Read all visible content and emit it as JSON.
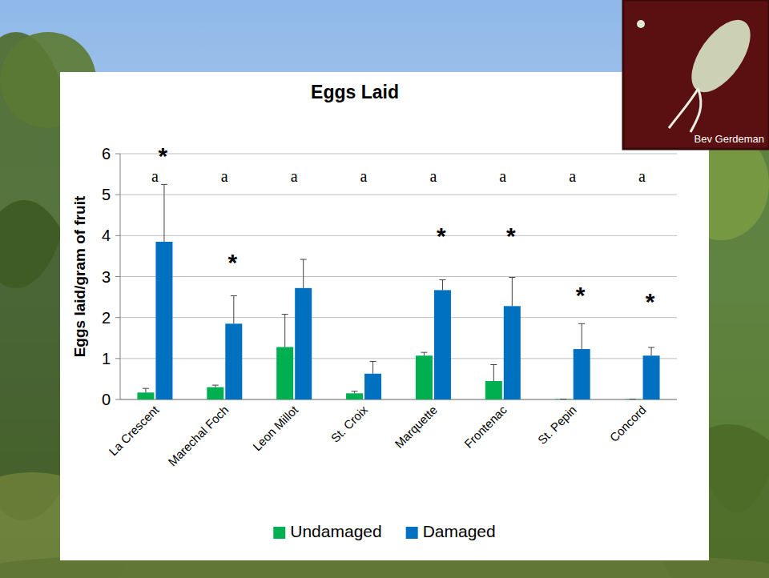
{
  "chart_data": {
    "type": "bar",
    "title": "Eggs Laid",
    "y_label": "Eggs laid/gram of fruit",
    "categories": [
      "La Crescent",
      "Marechal Foch",
      "Leon Millot",
      "St. Croix",
      "Marquette",
      "Frontenac",
      "St. Pepin",
      "Concord"
    ],
    "series": [
      {
        "name": "Undamaged",
        "color": "#00b050",
        "values": [
          0.17,
          0.3,
          1.28,
          0.15,
          1.07,
          0.45,
          0.01,
          0.01
        ],
        "errors": [
          0.1,
          0.05,
          0.8,
          0.05,
          0.08,
          0.4,
          0,
          0
        ]
      },
      {
        "name": "Damaged",
        "color": "#0070c0",
        "values": [
          3.85,
          1.85,
          2.72,
          0.63,
          2.67,
          2.28,
          1.23,
          1.07
        ],
        "errors": [
          1.4,
          0.68,
          0.7,
          0.3,
          0.25,
          0.7,
          0.62,
          0.2
        ]
      }
    ],
    "annotations": [
      {
        "text": "a",
        "category": 0,
        "y": 5.45
      },
      {
        "text": "a",
        "category": 1,
        "y": 5.45
      },
      {
        "text": "a",
        "category": 2,
        "y": 5.45
      },
      {
        "text": "a",
        "category": 3,
        "y": 5.45
      },
      {
        "text": "a",
        "category": 4,
        "y": 5.45
      },
      {
        "text": "a",
        "category": 5,
        "y": 5.45
      },
      {
        "text": "a",
        "category": 6,
        "y": 5.45
      },
      {
        "text": "a",
        "category": 7,
        "y": 5.45
      },
      {
        "text": "*",
        "category": 0,
        "y": 6.05
      },
      {
        "text": "*",
        "category": 1,
        "y": 3.45
      },
      {
        "text": "*",
        "category": 4,
        "y": 4.1
      },
      {
        "text": "*",
        "category": 5,
        "y": 4.1
      },
      {
        "text": "*",
        "category": 6,
        "y": 2.65
      },
      {
        "text": "*",
        "category": 7,
        "y": 2.5
      }
    ],
    "ylim": [
      0,
      6
    ],
    "yticks": [
      0,
      1,
      2,
      3,
      4,
      5,
      6
    ],
    "grid": true,
    "legend": "bottom"
  },
  "photo_credit": "Bev Gerdeman"
}
